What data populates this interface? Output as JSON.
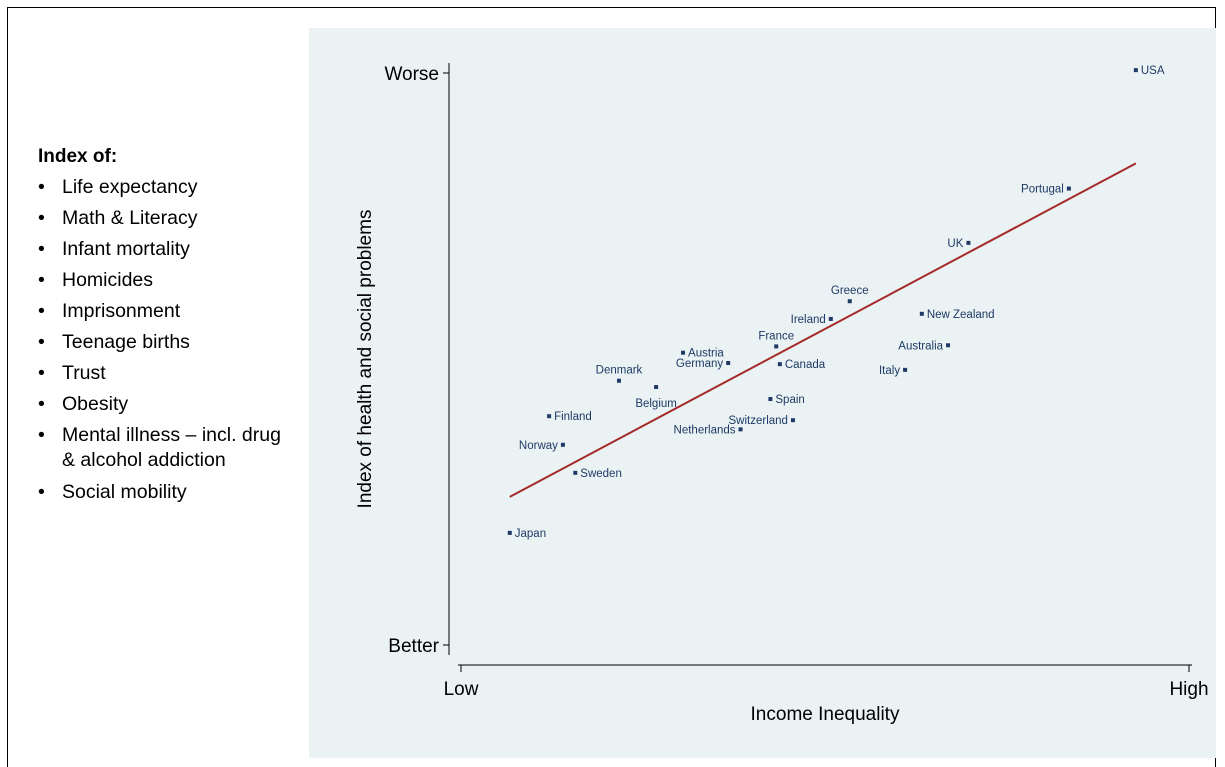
{
  "sidebar": {
    "heading": "Index of:",
    "items": [
      "Life expectancy",
      "Math & Literacy",
      "Infant mortality",
      "Homicides",
      "Imprisonment",
      "Teenage births",
      "Trust",
      "Obesity",
      "Mental illness – incl. drug & alcohol addiction",
      "Social mobility"
    ]
  },
  "colors": {
    "panel_background": "#eaf2f3",
    "point": "#1f3a66",
    "label": "#1f3a66",
    "fit_line": "#a52a2a",
    "axis": "#000000"
  },
  "chart_data": {
    "type": "scatter",
    "title": "",
    "xlabel": "Income Inequality",
    "ylabel": "Index of health and social problems",
    "x_ticks": [
      {
        "value": 0,
        "label": "Low"
      },
      {
        "value": 1,
        "label": "High"
      }
    ],
    "y_ticks": [
      {
        "value": 0,
        "label": "Better"
      },
      {
        "value": 1,
        "label": "Worse"
      }
    ],
    "xlim": [
      0,
      1
    ],
    "ylim": [
      0,
      1
    ],
    "grid": false,
    "legend": "none",
    "points": [
      {
        "name": "USA",
        "x": 0.927,
        "y": 1.005,
        "label_side": "right"
      },
      {
        "name": "Portugal",
        "x": 0.835,
        "y": 0.798,
        "label_side": "left"
      },
      {
        "name": "UK",
        "x": 0.697,
        "y": 0.703,
        "label_side": "left"
      },
      {
        "name": "Greece",
        "x": 0.534,
        "y": 0.601,
        "label_side": "above"
      },
      {
        "name": "New Zealand",
        "x": 0.633,
        "y": 0.579,
        "label_side": "right"
      },
      {
        "name": "Ireland",
        "x": 0.508,
        "y": 0.57,
        "label_side": "left"
      },
      {
        "name": "France",
        "x": 0.433,
        "y": 0.522,
        "label_side": "above"
      },
      {
        "name": "Australia",
        "x": 0.669,
        "y": 0.524,
        "label_side": "left"
      },
      {
        "name": "Austria",
        "x": 0.305,
        "y": 0.511,
        "label_side": "right"
      },
      {
        "name": "Germany",
        "x": 0.367,
        "y": 0.493,
        "label_side": "left"
      },
      {
        "name": "Canada",
        "x": 0.438,
        "y": 0.491,
        "label_side": "right"
      },
      {
        "name": "Italy",
        "x": 0.61,
        "y": 0.481,
        "label_side": "left"
      },
      {
        "name": "Denmark",
        "x": 0.217,
        "y": 0.462,
        "label_side": "above"
      },
      {
        "name": "Belgium",
        "x": 0.268,
        "y": 0.451,
        "label_side": "below"
      },
      {
        "name": "Spain",
        "x": 0.425,
        "y": 0.43,
        "label_side": "right"
      },
      {
        "name": "Switzerland",
        "x": 0.456,
        "y": 0.393,
        "label_side": "left"
      },
      {
        "name": "Netherlands",
        "x": 0.384,
        "y": 0.377,
        "label_side": "left"
      },
      {
        "name": "Finland",
        "x": 0.121,
        "y": 0.4,
        "label_side": "right"
      },
      {
        "name": "Norway",
        "x": 0.14,
        "y": 0.35,
        "label_side": "left"
      },
      {
        "name": "Sweden",
        "x": 0.157,
        "y": 0.301,
        "label_side": "right"
      },
      {
        "name": "Japan",
        "x": 0.067,
        "y": 0.196,
        "label_side": "right"
      }
    ],
    "fit_line": {
      "x": [
        0.067,
        0.927
      ],
      "y": [
        0.259,
        0.842
      ]
    }
  }
}
